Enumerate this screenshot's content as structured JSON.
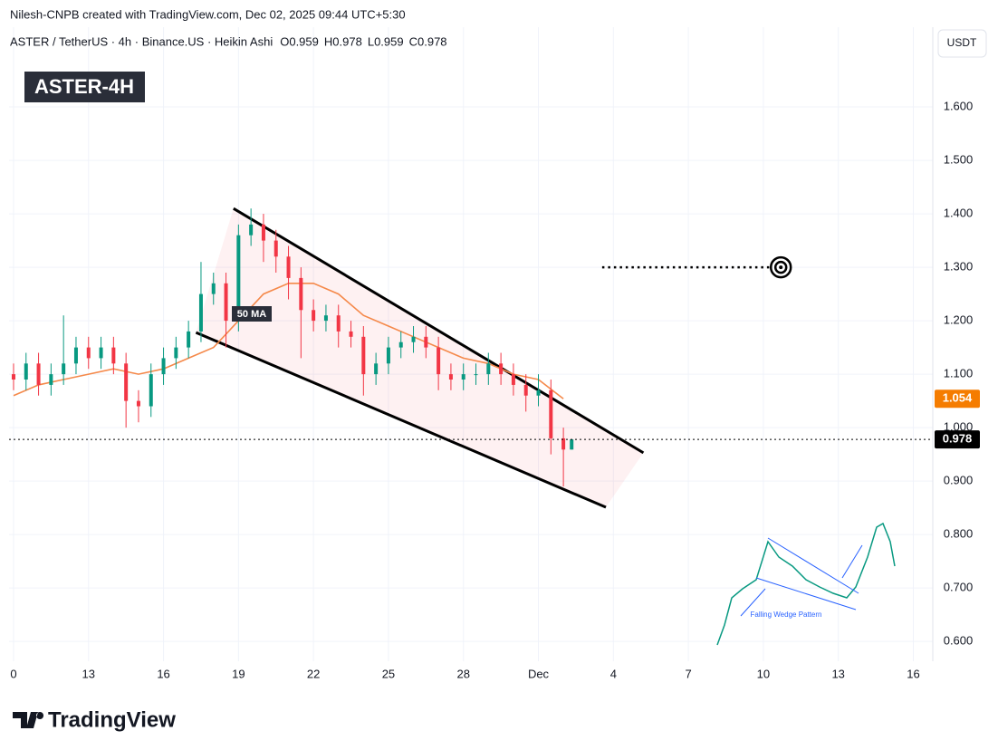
{
  "chart_data": {
    "type": "candlestick",
    "watermark": "Nilesh-CNPB created with TradingView.com, Dec 02, 2025 09:44 UTC+5:30",
    "symbol": "ASTER / TetherUS · 4h · Binance.US · Heikin Ashi",
    "ohlc_labels": [
      "O",
      "H",
      "L",
      "C"
    ],
    "badge": "ASTER-4H",
    "currency": "USDT",
    "brand": "TradingView",
    "up_color": "#089981",
    "down_color": "#f23645",
    "candles": {
      "x": [
        10,
        10.5,
        11,
        11.5,
        12,
        12.5,
        13,
        13.5,
        14,
        14.5,
        15,
        15.5,
        16,
        16.5,
        17,
        17.5,
        18,
        18.5,
        19,
        19.5,
        20,
        20.5,
        21,
        21.5,
        22,
        22.5,
        23,
        23.5,
        24,
        24.5,
        25,
        25.5,
        26,
        26.5,
        27,
        27.5,
        28,
        28.5,
        29,
        29.5,
        30,
        30.5,
        31,
        31.5,
        32,
        32.33
      ],
      "open": [
        1.1,
        1.09,
        1.12,
        1.08,
        1.1,
        1.12,
        1.15,
        1.13,
        1.15,
        1.12,
        1.05,
        1.04,
        1.1,
        1.13,
        1.15,
        1.18,
        1.25,
        1.27,
        1.2,
        1.36,
        1.38,
        1.35,
        1.32,
        1.28,
        1.22,
        1.2,
        1.21,
        1.18,
        1.17,
        1.1,
        1.12,
        1.15,
        1.16,
        1.17,
        1.15,
        1.1,
        1.09,
        1.1,
        1.1,
        1.12,
        1.1,
        1.08,
        1.06,
        1.07,
        0.98,
        0.959
      ],
      "high": [
        1.12,
        1.14,
        1.14,
        1.12,
        1.21,
        1.17,
        1.17,
        1.17,
        1.17,
        1.14,
        1.07,
        1.12,
        1.15,
        1.17,
        1.2,
        1.31,
        1.29,
        1.29,
        1.38,
        1.41,
        1.4,
        1.37,
        1.34,
        1.3,
        1.24,
        1.23,
        1.23,
        1.2,
        1.19,
        1.14,
        1.17,
        1.18,
        1.19,
        1.19,
        1.17,
        1.12,
        1.12,
        1.12,
        1.14,
        1.14,
        1.12,
        1.1,
        1.1,
        1.09,
        1.0,
        0.978
      ],
      "low": [
        1.07,
        1.07,
        1.06,
        1.06,
        1.08,
        1.1,
        1.11,
        1.11,
        1.1,
        1.0,
        1.01,
        1.02,
        1.08,
        1.11,
        1.13,
        1.16,
        1.23,
        1.15,
        1.18,
        1.34,
        1.31,
        1.29,
        1.24,
        1.13,
        1.18,
        1.18,
        1.15,
        1.15,
        1.06,
        1.08,
        1.1,
        1.13,
        1.14,
        1.13,
        1.07,
        1.07,
        1.07,
        1.08,
        1.08,
        1.08,
        1.06,
        1.03,
        1.04,
        0.95,
        0.89,
        0.959
      ],
      "close": [
        1.09,
        1.12,
        1.08,
        1.1,
        1.12,
        1.15,
        1.13,
        1.15,
        1.12,
        1.05,
        1.04,
        1.1,
        1.13,
        1.15,
        1.18,
        1.25,
        1.27,
        1.2,
        1.36,
        1.38,
        1.35,
        1.32,
        1.28,
        1.22,
        1.2,
        1.21,
        1.18,
        1.17,
        1.1,
        1.12,
        1.15,
        1.16,
        1.17,
        1.15,
        1.1,
        1.09,
        1.1,
        1.1,
        1.12,
        1.1,
        1.08,
        1.06,
        1.07,
        0.98,
        0.959,
        0.978
      ]
    },
    "ma": {
      "name": "50 MA",
      "color": "#f5894a",
      "x": [
        10,
        11,
        12,
        13,
        14,
        15,
        16,
        17,
        18,
        19,
        20,
        21,
        22,
        23,
        24,
        25,
        26,
        27,
        28,
        29,
        30,
        31,
        32
      ],
      "values": [
        1.06,
        1.08,
        1.09,
        1.1,
        1.11,
        1.1,
        1.11,
        1.13,
        1.15,
        1.2,
        1.25,
        1.27,
        1.27,
        1.25,
        1.21,
        1.19,
        1.17,
        1.15,
        1.13,
        1.12,
        1.1,
        1.09,
        1.054
      ]
    },
    "upper_trendline": {
      "x": [
        18.8,
        35.2
      ],
      "y": [
        1.41,
        0.953
      ]
    },
    "lower_trendline": {
      "x": [
        17.3,
        33.7
      ],
      "y": [
        1.178,
        0.851
      ]
    },
    "target_line": {
      "x": [
        33.55,
        40.25
      ],
      "y": [
        1.3,
        1.3
      ]
    },
    "target": {
      "x": 40.7,
      "y": 1.3
    },
    "inset_label": "Falling Wedge Pattern",
    "xlim": [
      9.82,
      46.78
    ],
    "xticks": [
      {
        "value": 10,
        "label": "0"
      },
      13,
      16,
      19,
      22,
      25,
      28,
      {
        "value": 31,
        "label": "Dec"
      },
      {
        "value": 34,
        "label": "4"
      },
      {
        "value": 37,
        "label": "7"
      },
      {
        "value": 40,
        "label": "10"
      },
      {
        "value": 43,
        "label": "13"
      },
      {
        "value": 46,
        "label": "16"
      }
    ],
    "ylim": [
      0.563,
      1.695
    ],
    "yticks": [
      {
        "value": 0.6,
        "label": "0.600"
      },
      {
        "value": 0.7,
        "label": "0.700"
      },
      {
        "value": 0.8,
        "label": "0.800"
      },
      {
        "value": 0.9,
        "label": "0.900"
      },
      {
        "value": 1.0,
        "label": "1.000"
      },
      {
        "value": 1.1,
        "label": "1.100"
      },
      {
        "value": 1.2,
        "label": "1.200"
      },
      {
        "value": 1.3,
        "label": "1.300"
      },
      {
        "value": 1.4,
        "label": "1.400"
      },
      {
        "value": 1.5,
        "label": "1.500"
      },
      {
        "value": 1.6,
        "label": "1.600"
      }
    ],
    "grid": true
  }
}
